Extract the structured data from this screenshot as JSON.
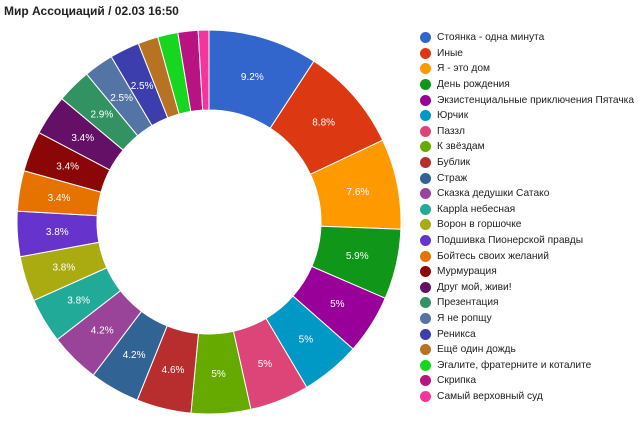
{
  "title": "Мир Ассоциаций / 02.03 16:50",
  "chart_data": {
    "type": "pie",
    "donut": true,
    "legend_position": "right",
    "slices": [
      {
        "label": "Стоянка - одна минута",
        "value": 9.2,
        "value_label": "9.2%",
        "color": "#3366cc"
      },
      {
        "label": "Иные",
        "value": 8.8,
        "value_label": "8.8%",
        "color": "#dc3912"
      },
      {
        "label": "Я - это дом",
        "value": 7.6,
        "value_label": "7.6%",
        "color": "#ff9900"
      },
      {
        "label": "День рождения",
        "value": 5.9,
        "value_label": "5.9%",
        "color": "#109618"
      },
      {
        "label": "Экзистенциальные приключения Пятачка",
        "value": 5.0,
        "value_label": "5%",
        "color": "#990099"
      },
      {
        "label": "Юрчик",
        "value": 5.0,
        "value_label": "5%",
        "color": "#0099c6"
      },
      {
        "label": "Паззл",
        "value": 5.0,
        "value_label": "5%",
        "color": "#dd4477"
      },
      {
        "label": "К звёздам",
        "value": 5.0,
        "value_label": "5%",
        "color": "#66aa00"
      },
      {
        "label": "Бублик",
        "value": 4.6,
        "value_label": "4.6%",
        "color": "#b82e2e"
      },
      {
        "label": "Страж",
        "value": 4.2,
        "value_label": "4.2%",
        "color": "#316395"
      },
      {
        "label": "Сказка дедушки Сатако",
        "value": 4.2,
        "value_label": "4.2%",
        "color": "#994499"
      },
      {
        "label": "Каррlа небесная",
        "value": 3.8,
        "value_label": "3.8%",
        "color": "#22aa99"
      },
      {
        "label": "Ворон в горшочке",
        "value": 3.8,
        "value_label": "3.8%",
        "color": "#aaaa11"
      },
      {
        "label": "Подшивка Пионерской правды",
        "value": 3.8,
        "value_label": "3.8%",
        "color": "#6633cc"
      },
      {
        "label": "Бойтесь своих желаний",
        "value": 3.4,
        "value_label": "3.4%",
        "color": "#e67300"
      },
      {
        "label": "Мурмурация",
        "value": 3.4,
        "value_label": "3.4%",
        "color": "#8b0707"
      },
      {
        "label": "Друг мой, живи!",
        "value": 3.4,
        "value_label": "3.4%",
        "color": "#651067"
      },
      {
        "label": "Презентация",
        "value": 2.9,
        "value_label": "2.9%",
        "color": "#329262"
      },
      {
        "label": "Я не ропщу",
        "value": 2.5,
        "value_label": "2.5%",
        "color": "#5574a6"
      },
      {
        "label": "Реникса",
        "value": 2.5,
        "value_label": "2.5%",
        "color": "#3b3eac"
      },
      {
        "label": "Ещё один дождь",
        "value": 1.7,
        "value_label": "",
        "color": "#b77322"
      },
      {
        "label": "Эгалите, фратерните и коталите",
        "value": 1.7,
        "value_label": "",
        "color": "#16d620"
      },
      {
        "label": "Скрипка",
        "value": 1.7,
        "value_label": "",
        "color": "#b91383"
      },
      {
        "label": "Самый верховный суд",
        "value": 0.9,
        "value_label": "",
        "color": "#f4359e"
      }
    ]
  }
}
